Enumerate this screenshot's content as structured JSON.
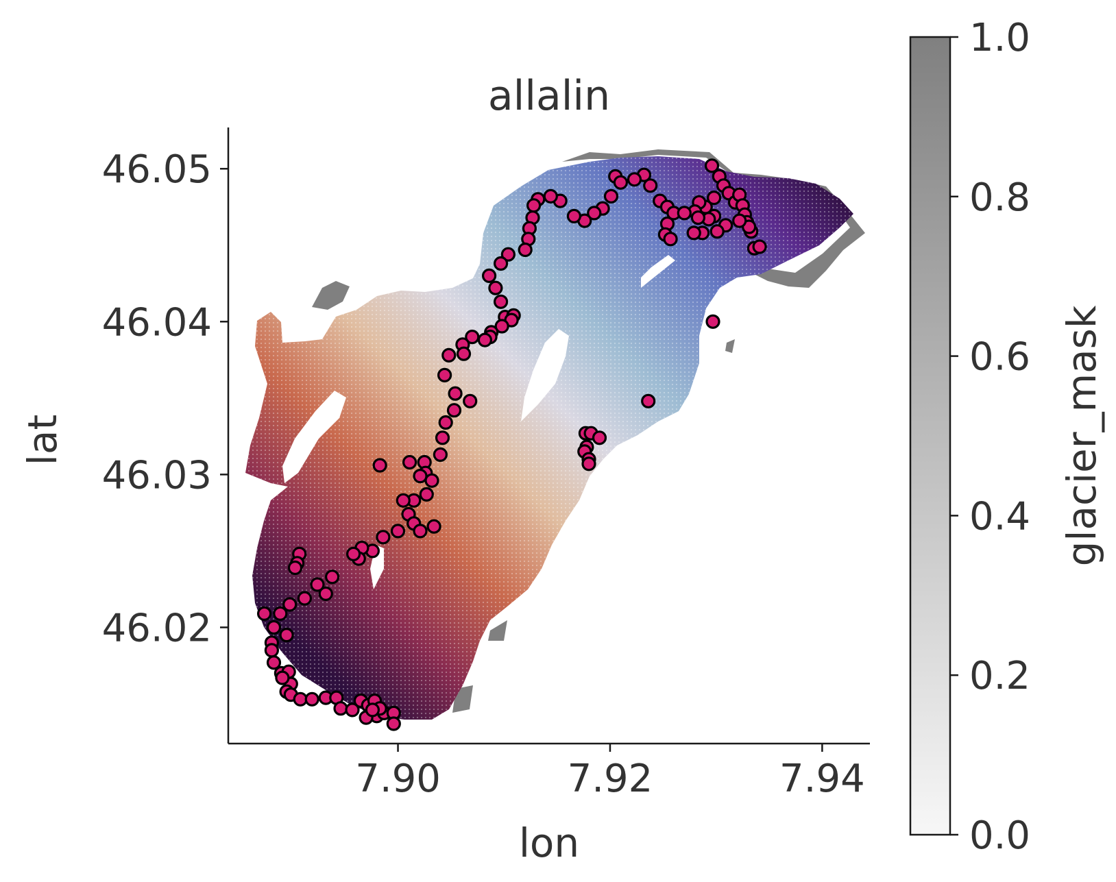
{
  "chart_data": {
    "type": "scatter",
    "title": "allalin",
    "xlabel": "lon",
    "ylabel": "lat",
    "xlim": [
      7.884,
      7.9445
    ],
    "ylim": [
      46.0124,
      46.0527
    ],
    "xticks": [
      "7.90",
      "7.92",
      "7.94"
    ],
    "yticks": [
      "46.02",
      "46.03",
      "46.04",
      "46.05"
    ],
    "grid": false,
    "background_layer": {
      "field": "glacier_mask",
      "color": "#808080",
      "description_of_extent": "glacier outline (grey cells)"
    },
    "gradient_layer": {
      "colormap": "twilight_shifted (purple-blue-white-orange-red-dark purple)",
      "direction": "values decrease from northeast to southwest"
    },
    "colorbar": {
      "label": "glacier_mask",
      "ticks": [
        "0.0",
        "0.2",
        "0.4",
        "0.6",
        "0.8",
        "1.0"
      ],
      "range": [
        0.0,
        1.0
      ],
      "colors": [
        "#f7f7f7",
        "#808080"
      ]
    },
    "points_color": "#d81b72",
    "points_edge": "#000000",
    "points": [
      [
        7.9296,
        46.0502
      ],
      [
        7.9303,
        46.0495
      ],
      [
        7.9307,
        46.0489
      ],
      [
        7.9312,
        46.0484
      ],
      [
        7.9318,
        46.0478
      ],
      [
        7.9322,
        46.0483
      ],
      [
        7.9325,
        46.0476
      ],
      [
        7.9327,
        46.047
      ],
      [
        7.9329,
        46.0465
      ],
      [
        7.9333,
        46.0459
      ],
      [
        7.9331,
        46.0462
      ],
      [
        7.9336,
        46.0448
      ],
      [
        7.9341,
        46.0449
      ],
      [
        7.9322,
        46.0466
      ],
      [
        7.9309,
        46.0463
      ],
      [
        7.9298,
        46.0469
      ],
      [
        7.9293,
        46.0467
      ],
      [
        7.929,
        46.0475
      ],
      [
        7.9284,
        46.0478
      ],
      [
        7.928,
        46.0472
      ],
      [
        7.9287,
        46.0458
      ],
      [
        7.9301,
        46.0459
      ],
      [
        7.9283,
        46.0468
      ],
      [
        7.9298,
        46.0481
      ],
      [
        7.9232,
        46.0496
      ],
      [
        7.9223,
        46.0493
      ],
      [
        7.9238,
        46.0489
      ],
      [
        7.9247,
        46.0479
      ],
      [
        7.9254,
        46.0475
      ],
      [
        7.926,
        46.0471
      ],
      [
        7.9254,
        46.0464
      ],
      [
        7.9252,
        46.0457
      ],
      [
        7.9257,
        46.0454
      ],
      [
        7.927,
        46.0471
      ],
      [
        7.9279,
        46.0458
      ],
      [
        7.9205,
        46.0495
      ],
      [
        7.921,
        46.0491
      ],
      [
        7.9201,
        46.0482
      ],
      [
        7.9193,
        46.0474
      ],
      [
        7.9185,
        46.0471
      ],
      [
        7.9176,
        46.0466
      ],
      [
        7.9166,
        46.0469
      ],
      [
        7.9153,
        46.0479
      ],
      [
        7.9144,
        46.0482
      ],
      [
        7.9132,
        46.048
      ],
      [
        7.9128,
        46.0476
      ],
      [
        7.9127,
        46.0468
      ],
      [
        7.9124,
        46.0461
      ],
      [
        7.9123,
        46.0454
      ],
      [
        7.912,
        46.0447
      ],
      [
        7.9104,
        46.0444
      ],
      [
        7.9097,
        46.0438
      ],
      [
        7.9086,
        46.043
      ],
      [
        7.9092,
        46.0422
      ],
      [
        7.9097,
        46.0413
      ],
      [
        7.9101,
        46.0403
      ],
      [
        7.9109,
        46.0404
      ],
      [
        7.9107,
        46.0401
      ],
      [
        7.9098,
        46.0397
      ],
      [
        7.9088,
        46.0393
      ],
      [
        7.9087,
        46.039
      ],
      [
        7.9082,
        46.0388
      ],
      [
        7.907,
        46.039
      ],
      [
        7.9061,
        46.0385
      ],
      [
        7.9062,
        46.0379
      ],
      [
        7.9048,
        46.0378
      ],
      [
        7.9044,
        46.0365
      ],
      [
        7.9054,
        46.0353
      ],
      [
        7.9068,
        46.0348
      ],
      [
        7.9053,
        46.0342
      ],
      [
        7.9045,
        46.0334
      ],
      [
        7.9042,
        46.0324
      ],
      [
        7.904,
        46.0313
      ],
      [
        7.9025,
        46.0308
      ],
      [
        7.9011,
        46.0308
      ],
      [
        7.9026,
        46.0301
      ],
      [
        7.9021,
        46.0299
      ],
      [
        7.9032,
        46.0296
      ],
      [
        7.9027,
        46.0287
      ],
      [
        7.9015,
        46.0283
      ],
      [
        7.9005,
        46.0283
      ],
      [
        7.901,
        46.0274
      ],
      [
        7.9015,
        46.0268
      ],
      [
        7.9021,
        46.0263
      ],
      [
        7.9034,
        46.0266
      ],
      [
        7.9,
        46.0263
      ],
      [
        7.8986,
        46.0259
      ],
      [
        7.8976,
        46.025
      ],
      [
        7.8966,
        46.0252
      ],
      [
        7.8963,
        46.0245
      ],
      [
        7.8958,
        46.0248
      ],
      [
        7.8983,
        46.0306
      ],
      [
        7.9177,
        46.0327
      ],
      [
        7.9182,
        46.0327
      ],
      [
        7.919,
        46.0324
      ],
      [
        7.9178,
        46.0318
      ],
      [
        7.9176,
        46.0315
      ],
      [
        7.918,
        46.031
      ],
      [
        7.918,
        46.0307
      ],
      [
        7.9236,
        46.0348
      ],
      [
        7.9297,
        46.04
      ],
      [
        7.8938,
        46.0233
      ],
      [
        7.8932,
        46.0222
      ],
      [
        7.8924,
        46.0228
      ],
      [
        7.8912,
        46.0219
      ],
      [
        7.8898,
        46.0215
      ],
      [
        7.8907,
        46.0248
      ],
      [
        7.8905,
        46.0242
      ],
      [
        7.8903,
        46.0239
      ],
      [
        7.8874,
        46.0209
      ],
      [
        7.8889,
        46.0209
      ],
      [
        7.8883,
        46.02
      ],
      [
        7.8895,
        46.0195
      ],
      [
        7.8881,
        46.019
      ],
      [
        7.8881,
        46.0185
      ],
      [
        7.8883,
        46.0177
      ],
      [
        7.889,
        46.017
      ],
      [
        7.8897,
        46.0171
      ],
      [
        7.8899,
        46.0163
      ],
      [
        7.8891,
        46.0167
      ],
      [
        7.8895,
        46.0158
      ],
      [
        7.8899,
        46.0156
      ],
      [
        7.8908,
        46.0153
      ],
      [
        7.8919,
        46.0153
      ],
      [
        7.8932,
        46.0154
      ],
      [
        7.8942,
        46.0154
      ],
      [
        7.8946,
        46.0147
      ],
      [
        7.8957,
        46.0146
      ],
      [
        7.8965,
        46.0152
      ],
      [
        7.8972,
        46.0149
      ],
      [
        7.8978,
        46.0152
      ],
      [
        7.898,
        46.0142
      ],
      [
        7.897,
        46.0141
      ],
      [
        7.8987,
        46.0144
      ],
      [
        7.8983,
        46.0147
      ],
      [
        7.8996,
        46.0144
      ],
      [
        7.8996,
        46.0137
      ],
      [
        7.8976,
        46.0146
      ]
    ]
  }
}
